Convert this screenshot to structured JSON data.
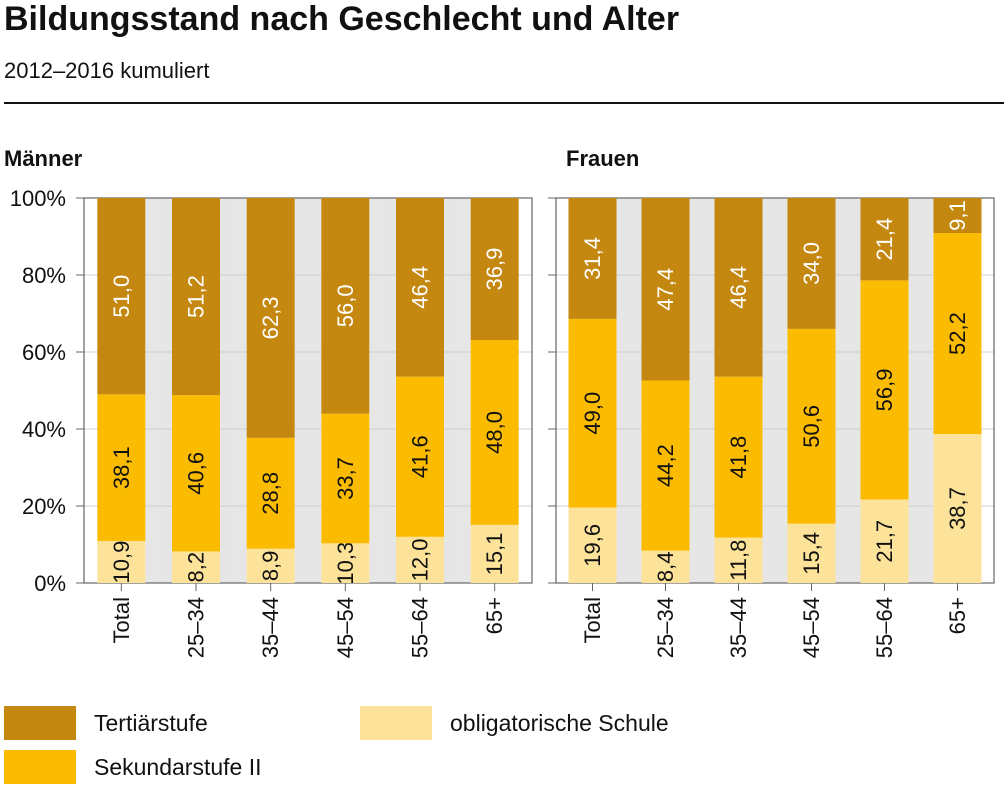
{
  "title": "Bildungsstand nach Geschlecht und Alter",
  "subtitle": "2012–2016 kumuliert",
  "colors": {
    "tertiaer": "#c4870f",
    "sekundar": "#fbbb00",
    "obligatorisch": "#fde39a",
    "grid_band": "#e6e6e6"
  },
  "legend": [
    {
      "key": "tertiaer",
      "label": "Tertiärstufe"
    },
    {
      "key": "sekundar",
      "label": "Sekundarstufe II"
    },
    {
      "key": "obligatorisch",
      "label": "obligatorische Schule"
    }
  ],
  "chart_data": [
    {
      "type": "bar",
      "stacked": true,
      "title": "Männer",
      "categories": [
        "Total",
        "25–34",
        "35–44",
        "45–54",
        "55–64",
        "65+"
      ],
      "y_ticks": [
        "0%",
        "20%",
        "40%",
        "60%",
        "80%",
        "100%"
      ],
      "ylim": [
        0,
        100
      ],
      "series": [
        {
          "name": "obligatorische Schule",
          "key": "obligatorisch",
          "values": [
            10.9,
            8.2,
            8.9,
            10.3,
            12.0,
            15.1
          ],
          "labels": [
            "10,9",
            "8,2",
            "8,9",
            "10,3",
            "12,0",
            "15,1"
          ]
        },
        {
          "name": "Sekundarstufe II",
          "key": "sekundar",
          "values": [
            38.1,
            40.6,
            28.8,
            33.7,
            41.6,
            48.0
          ],
          "labels": [
            "38,1",
            "40,6",
            "28,8",
            "33,7",
            "41,6",
            "48,0"
          ]
        },
        {
          "name": "Tertiärstufe",
          "key": "tertiaer",
          "values": [
            51.0,
            51.2,
            62.3,
            56.0,
            46.4,
            36.9
          ],
          "labels": [
            "51,0",
            "51,2",
            "62,3",
            "56,0",
            "46,4",
            "36,9"
          ]
        }
      ]
    },
    {
      "type": "bar",
      "stacked": true,
      "title": "Frauen",
      "categories": [
        "Total",
        "25–34",
        "35–44",
        "45–54",
        "55–64",
        "65+"
      ],
      "y_ticks": [
        "0%",
        "20%",
        "40%",
        "60%",
        "80%",
        "100%"
      ],
      "ylim": [
        0,
        100
      ],
      "series": [
        {
          "name": "obligatorische Schule",
          "key": "obligatorisch",
          "values": [
            19.6,
            8.4,
            11.8,
            15.4,
            21.7,
            38.7
          ],
          "labels": [
            "19,6",
            "8,4",
            "11,8",
            "15,4",
            "21,7",
            "38,7"
          ]
        },
        {
          "name": "Sekundarstufe II",
          "key": "sekundar",
          "values": [
            49.0,
            44.2,
            41.8,
            50.6,
            56.9,
            52.2
          ],
          "labels": [
            "49,0",
            "44,2",
            "41,8",
            "50,6",
            "56,9",
            "52,2"
          ]
        },
        {
          "name": "Tertiärstufe",
          "key": "tertiaer",
          "values": [
            31.4,
            47.4,
            46.4,
            34.0,
            21.4,
            9.1
          ],
          "labels": [
            "31,4",
            "47,4",
            "46,4",
            "34,0",
            "21,4",
            "9,1"
          ]
        }
      ]
    }
  ]
}
